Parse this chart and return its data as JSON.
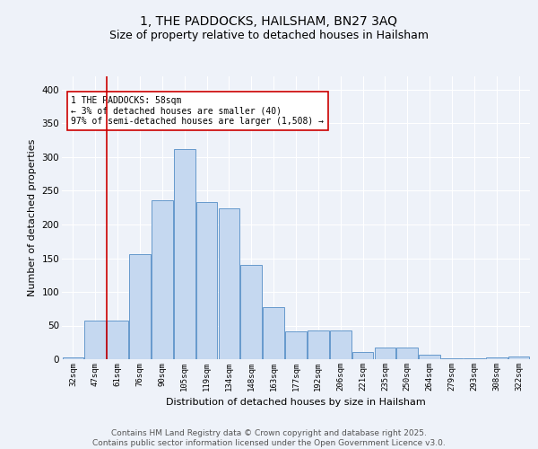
{
  "title": "1, THE PADDOCKS, HAILSHAM, BN27 3AQ",
  "subtitle": "Size of property relative to detached houses in Hailsham",
  "xlabel": "Distribution of detached houses by size in Hailsham",
  "ylabel": "Number of detached properties",
  "bar_labels": [
    "32sqm",
    "47sqm",
    "61sqm",
    "76sqm",
    "90sqm",
    "105sqm",
    "119sqm",
    "134sqm",
    "148sqm",
    "163sqm",
    "177sqm",
    "192sqm",
    "206sqm",
    "221sqm",
    "235sqm",
    "250sqm",
    "264sqm",
    "279sqm",
    "293sqm",
    "308sqm",
    "322sqm"
  ],
  "bar_values": [
    3,
    57,
    58,
    156,
    236,
    312,
    233,
    224,
    140,
    77,
    41,
    43,
    43,
    11,
    17,
    17,
    7,
    1,
    1,
    3,
    4
  ],
  "bar_color": "#c5d8f0",
  "bar_edge_color": "#6699cc",
  "property_line_color": "#cc0000",
  "property_line_x": 1.5,
  "annotation_text": "1 THE PADDOCKS: 58sqm\n← 3% of detached houses are smaller (40)\n97% of semi-detached houses are larger (1,508) →",
  "annotation_box_color": "#ffffff",
  "annotation_box_edge_color": "#cc0000",
  "ylim": [
    0,
    420
  ],
  "yticks": [
    0,
    50,
    100,
    150,
    200,
    250,
    300,
    350,
    400
  ],
  "footer_text": "Contains HM Land Registry data © Crown copyright and database right 2025.\nContains public sector information licensed under the Open Government Licence v3.0.",
  "background_color": "#eef2f9",
  "plot_bg_color": "#eef2f9",
  "grid_color": "#ffffff",
  "title_fontsize": 10,
  "subtitle_fontsize": 9,
  "axis_label_fontsize": 8,
  "tick_fontsize": 6.5,
  "annotation_fontsize": 7,
  "footer_fontsize": 6.5
}
